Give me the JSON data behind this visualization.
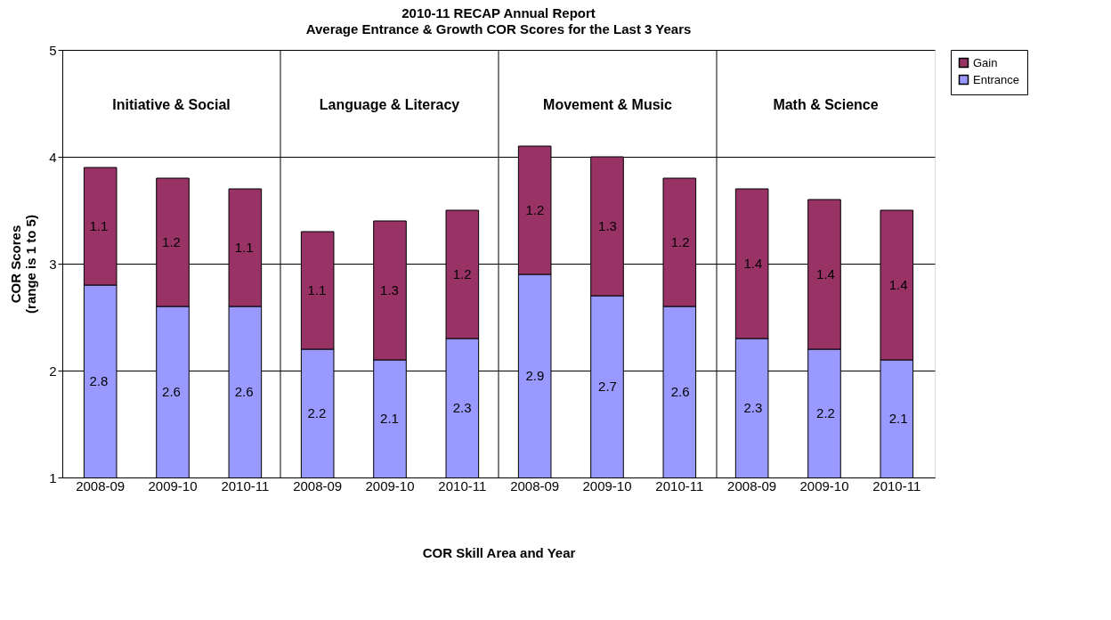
{
  "chart_data": {
    "type": "bar",
    "stacked": true,
    "title": "2010-11 RECAP Annual Report",
    "subtitle": "Average Entrance & Growth COR Scores for the Last 3 Years",
    "xlabel": "COR Skill Area and Year",
    "ylabel": "COR Scores\n(range is 1 to 5)",
    "categories": [
      "2008-09",
      "2009-10",
      "2010-11",
      "2008-09",
      "2009-10",
      "2010-11",
      "2008-09",
      "2009-10",
      "2010-11",
      "2008-09",
      "2009-10",
      "2010-11"
    ],
    "series": [
      {
        "name": "Entrance",
        "color": "#9999ff",
        "values": [
          2.8,
          2.6,
          2.6,
          2.2,
          2.1,
          2.3,
          2.9,
          2.7,
          2.6,
          2.3,
          2.2,
          2.1
        ]
      },
      {
        "name": "Gain",
        "color": "#993366",
        "values": [
          1.1,
          1.2,
          1.1,
          1.1,
          1.3,
          1.2,
          1.2,
          1.3,
          1.2,
          1.4,
          1.4,
          1.4
        ]
      }
    ],
    "annotations": [
      "Initiative & Social",
      "Language & Literacy",
      "Movement & Music",
      "Math & Science"
    ],
    "ylim": [
      1,
      5
    ],
    "yticks": [
      1,
      2,
      3,
      4,
      5
    ],
    "grid": "y",
    "legend": "right",
    "data_labels": true
  }
}
